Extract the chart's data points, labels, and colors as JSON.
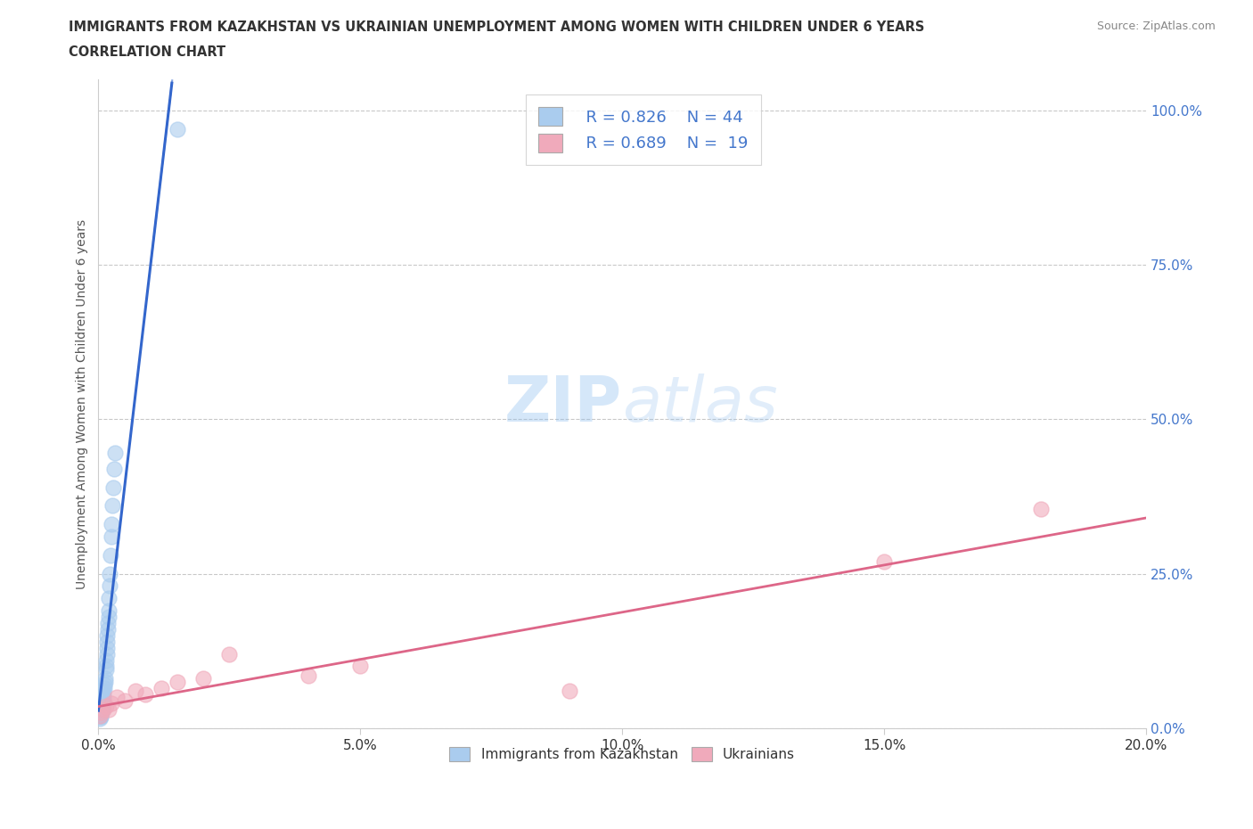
{
  "title": "IMMIGRANTS FROM KAZAKHSTAN VS UKRAINIAN UNEMPLOYMENT AMONG WOMEN WITH CHILDREN UNDER 6 YEARS",
  "subtitle": "CORRELATION CHART",
  "source": "Source: ZipAtlas.com",
  "ylabel": "Unemployment Among Women with Children Under 6 years",
  "x_lim": [
    0,
    0.2
  ],
  "y_lim": [
    0,
    1.05
  ],
  "watermark_zip": "ZIP",
  "watermark_atlas": "atlas",
  "legend_kaz_R": "R = 0.826",
  "legend_kaz_N": "N = 44",
  "legend_ukr_R": "R = 0.689",
  "legend_ukr_N": "N =  19",
  "kaz_color": "#aaccee",
  "ukr_color": "#f0aabb",
  "kaz_line_color": "#3366cc",
  "ukr_line_color": "#dd6688",
  "grid_color": "#bbbbbb",
  "background_color": "#ffffff",
  "title_color": "#333333",
  "source_color": "#888888",
  "ytick_color": "#4477cc",
  "xtick_color": "#333333",
  "ylabel_color": "#555555",
  "kaz_scatter_x": [
    0.0002,
    0.0003,
    0.0003,
    0.0004,
    0.0004,
    0.0005,
    0.0005,
    0.0006,
    0.0006,
    0.0007,
    0.0007,
    0.0008,
    0.0008,
    0.0008,
    0.0009,
    0.0009,
    0.001,
    0.001,
    0.0011,
    0.0012,
    0.0013,
    0.0013,
    0.0014,
    0.0015,
    0.0015,
    0.0016,
    0.0016,
    0.0017,
    0.0017,
    0.0018,
    0.0018,
    0.0019,
    0.002,
    0.002,
    0.0021,
    0.0022,
    0.0023,
    0.0024,
    0.0025,
    0.0026,
    0.0028,
    0.003,
    0.0032,
    0.015
  ],
  "kaz_scatter_y": [
    0.02,
    0.015,
    0.025,
    0.018,
    0.03,
    0.02,
    0.035,
    0.025,
    0.04,
    0.03,
    0.045,
    0.035,
    0.05,
    0.04,
    0.055,
    0.045,
    0.05,
    0.06,
    0.065,
    0.07,
    0.075,
    0.08,
    0.1,
    0.095,
    0.11,
    0.12,
    0.13,
    0.14,
    0.15,
    0.16,
    0.17,
    0.18,
    0.19,
    0.21,
    0.23,
    0.25,
    0.28,
    0.31,
    0.33,
    0.36,
    0.39,
    0.42,
    0.445,
    0.97
  ],
  "ukr_scatter_x": [
    0.0002,
    0.0005,
    0.001,
    0.0015,
    0.002,
    0.0025,
    0.0035,
    0.005,
    0.007,
    0.009,
    0.012,
    0.015,
    0.02,
    0.025,
    0.04,
    0.05,
    0.09,
    0.15,
    0.18
  ],
  "ukr_scatter_y": [
    0.02,
    0.025,
    0.03,
    0.035,
    0.03,
    0.04,
    0.05,
    0.045,
    0.06,
    0.055,
    0.065,
    0.075,
    0.08,
    0.12,
    0.085,
    0.1,
    0.06,
    0.27,
    0.355
  ]
}
